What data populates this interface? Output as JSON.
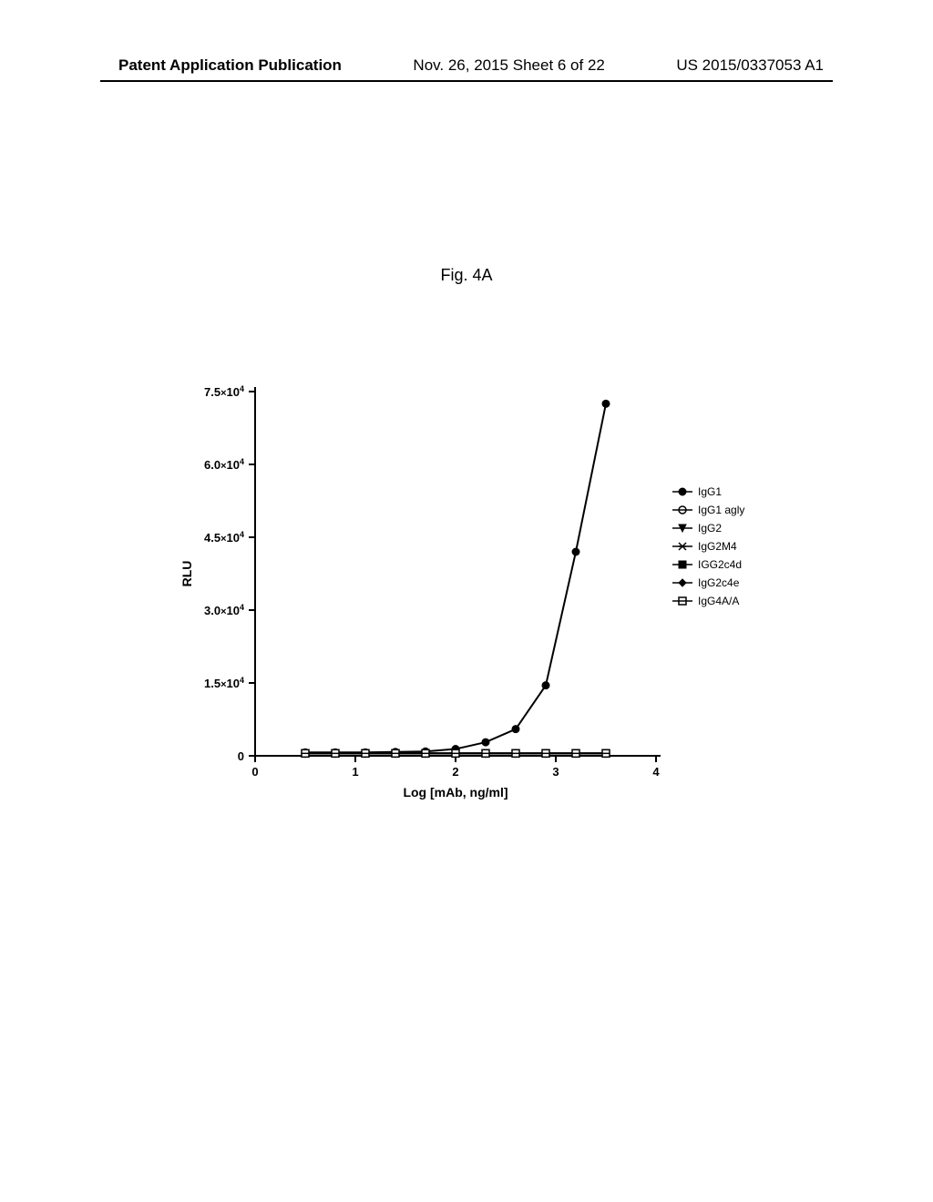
{
  "header": {
    "left": "Patent Application Publication",
    "mid": "Nov. 26, 2015  Sheet 6 of 22",
    "right": "US 2015/0337053 A1"
  },
  "figure": {
    "title": "Fig. 4A",
    "type": "line",
    "background_color": "#ffffff",
    "axis_color": "#000000",
    "text_color": "#000000",
    "xlabel": "Log [mAb, ng/ml]",
    "ylabel": "RLU",
    "label_fontsize": 14,
    "xlim": [
      0,
      4
    ],
    "ylim": [
      0,
      75000
    ],
    "xticks": [
      0,
      1,
      2,
      3,
      4
    ],
    "xtick_labels": [
      "0",
      "1",
      "2",
      "3",
      "4"
    ],
    "yticks": [
      0,
      15000,
      30000,
      45000,
      60000,
      75000
    ],
    "ytick_labels": [
      "0",
      "1.5×10⁴",
      "3.0×10⁴",
      "4.5×10⁴",
      "6.0×10⁴",
      "7.5×10⁴"
    ],
    "tick_label_fontsize": 13,
    "tick_label_weight": "bold",
    "line_color": "#000000",
    "line_width": 2,
    "series": [
      {
        "name": "IgG1",
        "marker": "filled-circle",
        "x": [
          0.5,
          0.8,
          1.1,
          1.4,
          1.7,
          2.0,
          2.3,
          2.6,
          2.9,
          3.2,
          3.5
        ],
        "y": [
          700,
          700,
          700,
          800,
          900,
          1400,
          2800,
          5500,
          14500,
          42000,
          72500
        ]
      },
      {
        "name": "IgG1 agly",
        "marker": "open-circle",
        "x": [
          0.5,
          0.8,
          1.1,
          1.4,
          1.7,
          2.0,
          2.3,
          2.6,
          2.9,
          3.2,
          3.5
        ],
        "y": [
          500,
          500,
          500,
          500,
          500,
          500,
          500,
          500,
          500,
          500,
          500
        ]
      },
      {
        "name": "IgG2",
        "marker": "filled-down-triangle",
        "x": [
          0.5,
          0.8,
          1.1,
          1.4,
          1.7,
          2.0,
          2.3,
          2.6,
          2.9,
          3.2,
          3.5
        ],
        "y": [
          500,
          500,
          500,
          500,
          500,
          500,
          500,
          500,
          500,
          500,
          500
        ]
      },
      {
        "name": "IgG2M4",
        "marker": "x-star",
        "x": [
          0.5,
          0.8,
          1.1,
          1.4,
          1.7,
          2.0,
          2.3,
          2.6,
          2.9,
          3.2,
          3.5
        ],
        "y": [
          500,
          500,
          500,
          500,
          500,
          500,
          500,
          500,
          500,
          500,
          500
        ]
      },
      {
        "name": "IGG2c4d",
        "marker": "filled-square",
        "x": [
          0.5,
          0.8,
          1.1,
          1.4,
          1.7,
          2.0,
          2.3,
          2.6,
          2.9,
          3.2,
          3.5
        ],
        "y": [
          500,
          500,
          500,
          500,
          500,
          500,
          500,
          500,
          500,
          500,
          500
        ]
      },
      {
        "name": "IgG2c4e",
        "marker": "filled-diamond",
        "x": [
          0.5,
          0.8,
          1.1,
          1.4,
          1.7,
          2.0,
          2.3,
          2.6,
          2.9,
          3.2,
          3.5
        ],
        "y": [
          500,
          500,
          500,
          500,
          500,
          500,
          500,
          500,
          500,
          500,
          500
        ]
      },
      {
        "name": "IgG4A/A",
        "marker": "open-square",
        "x": [
          0.5,
          0.8,
          1.1,
          1.4,
          1.7,
          2.0,
          2.3,
          2.6,
          2.9,
          3.2,
          3.5
        ],
        "y": [
          500,
          500,
          500,
          500,
          500,
          500,
          500,
          500,
          500,
          500,
          500
        ]
      }
    ],
    "legend": {
      "position": "right",
      "fontsize": 12,
      "items": [
        {
          "label": "IgG1",
          "marker": "filled-circle"
        },
        {
          "label": "IgG1 agly",
          "marker": "open-circle"
        },
        {
          "label": "IgG2",
          "marker": "filled-down-triangle"
        },
        {
          "label": "IgG2M4",
          "marker": "x-star"
        },
        {
          "label": "IGG2c4d",
          "marker": "filled-square"
        },
        {
          "label": "IgG2c4e",
          "marker": "filled-diamond"
        },
        {
          "label": "IgG4A/A",
          "marker": "open-square"
        }
      ]
    }
  }
}
